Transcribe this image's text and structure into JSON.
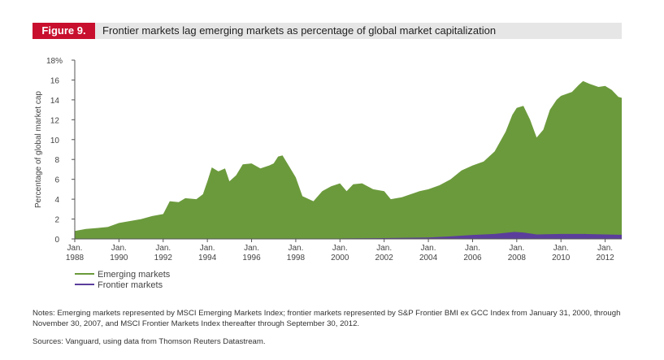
{
  "header": {
    "figure_label": "Figure 9.",
    "title": "Frontier markets lag emerging markets as percentage of global market capitalization",
    "badge_color": "#c8102e"
  },
  "chart_data": {
    "type": "area",
    "ylabel": "Percentage of global market cap",
    "ylim": [
      0,
      18
    ],
    "y_ticks": [
      "0",
      "2",
      "4",
      "6",
      "8",
      "10",
      "12",
      "14",
      "16",
      "18%"
    ],
    "x_ticks": [
      {
        "line1": "Jan.",
        "line2": "1988"
      },
      {
        "line1": "Jan.",
        "line2": "1990"
      },
      {
        "line1": "Jan.",
        "line2": "1992"
      },
      {
        "line1": "Jan.",
        "line2": "1994"
      },
      {
        "line1": "Jan.",
        "line2": "1996"
      },
      {
        "line1": "Jan.",
        "line2": "1998"
      },
      {
        "line1": "Jan.",
        "line2": "2000"
      },
      {
        "line1": "Jan.",
        "line2": "2002"
      },
      {
        "line1": "Jan.",
        "line2": "2004"
      },
      {
        "line1": "Jan.",
        "line2": "2006"
      },
      {
        "line1": "Jan.",
        "line2": "2008"
      },
      {
        "line1": "Jan.",
        "line2": "2010"
      },
      {
        "line1": "Jan.",
        "line2": "2012"
      }
    ],
    "x_tick_years": [
      1988,
      1990,
      1992,
      1994,
      1996,
      1998,
      2000,
      2002,
      2004,
      2006,
      2008,
      2010,
      2012
    ],
    "xlim": [
      1988,
      2012.75
    ],
    "series": [
      {
        "name": "Emerging markets",
        "color": "#6b9a3c",
        "points": [
          [
            1988,
            0.8
          ],
          [
            1988.5,
            1.0
          ],
          [
            1989,
            1.1
          ],
          [
            1989.5,
            1.2
          ],
          [
            1990,
            1.6
          ],
          [
            1990.5,
            1.8
          ],
          [
            1991,
            2.0
          ],
          [
            1991.5,
            2.3
          ],
          [
            1992,
            2.5
          ],
          [
            1992.3,
            3.8
          ],
          [
            1992.7,
            3.7
          ],
          [
            1993,
            4.1
          ],
          [
            1993.5,
            4.0
          ],
          [
            1993.8,
            4.5
          ],
          [
            1994,
            5.8
          ],
          [
            1994.2,
            7.2
          ],
          [
            1994.5,
            6.8
          ],
          [
            1994.8,
            7.1
          ],
          [
            1995,
            5.8
          ],
          [
            1995.3,
            6.4
          ],
          [
            1995.6,
            7.5
          ],
          [
            1996,
            7.6
          ],
          [
            1996.4,
            7.1
          ],
          [
            1996.8,
            7.4
          ],
          [
            1997,
            7.6
          ],
          [
            1997.2,
            8.3
          ],
          [
            1997.4,
            8.4
          ],
          [
            1997.7,
            7.3
          ],
          [
            1998,
            6.2
          ],
          [
            1998.3,
            4.3
          ],
          [
            1998.6,
            4.0
          ],
          [
            1998.8,
            3.8
          ],
          [
            1999.2,
            4.8
          ],
          [
            1999.6,
            5.3
          ],
          [
            2000,
            5.6
          ],
          [
            2000.3,
            4.8
          ],
          [
            2000.6,
            5.5
          ],
          [
            2001,
            5.6
          ],
          [
            2001.5,
            5.0
          ],
          [
            2002,
            4.8
          ],
          [
            2002.3,
            4.0
          ],
          [
            2002.8,
            4.2
          ],
          [
            2003.2,
            4.5
          ],
          [
            2003.6,
            4.8
          ],
          [
            2004,
            5.0
          ],
          [
            2004.5,
            5.4
          ],
          [
            2005,
            6.0
          ],
          [
            2005.5,
            6.9
          ],
          [
            2006,
            7.4
          ],
          [
            2006.5,
            7.8
          ],
          [
            2007,
            8.8
          ],
          [
            2007.5,
            10.8
          ],
          [
            2007.8,
            12.5
          ],
          [
            2008,
            13.2
          ],
          [
            2008.3,
            13.4
          ],
          [
            2008.6,
            12.0
          ],
          [
            2008.9,
            10.2
          ],
          [
            2009.2,
            11.0
          ],
          [
            2009.5,
            13.0
          ],
          [
            2009.8,
            14.0
          ],
          [
            2010,
            14.4
          ],
          [
            2010.5,
            14.8
          ],
          [
            2010.8,
            15.5
          ],
          [
            2011,
            15.9
          ],
          [
            2011.3,
            15.6
          ],
          [
            2011.7,
            15.3
          ],
          [
            2012,
            15.4
          ],
          [
            2012.3,
            15.0
          ],
          [
            2012.6,
            14.3
          ],
          [
            2012.75,
            14.2
          ]
        ]
      },
      {
        "name": "Frontier markets",
        "color": "#5b3e9c",
        "points": [
          [
            2000.08,
            0.05
          ],
          [
            2002,
            0.08
          ],
          [
            2004,
            0.15
          ],
          [
            2005,
            0.25
          ],
          [
            2006,
            0.4
          ],
          [
            2007,
            0.5
          ],
          [
            2007.9,
            0.7
          ],
          [
            2008.3,
            0.65
          ],
          [
            2008.9,
            0.45
          ],
          [
            2010,
            0.5
          ],
          [
            2011,
            0.5
          ],
          [
            2012,
            0.45
          ],
          [
            2012.75,
            0.42
          ]
        ]
      }
    ]
  },
  "legend": [
    {
      "label": "Emerging markets",
      "color": "#6b9a3c"
    },
    {
      "label": "Frontier markets",
      "color": "#5b3e9c"
    }
  ],
  "notes": "Notes: Emerging markets represented by MSCI Emerging Markets Index; frontier markets represented by S&P Frontier BMI ex GCC Index from January 31, 2000, through November 30, 2007, and MSCI Frontier Markets Index thereafter through September 30, 2012.",
  "sources": "Sources: Vanguard, using data from Thomson Reuters Datastream."
}
